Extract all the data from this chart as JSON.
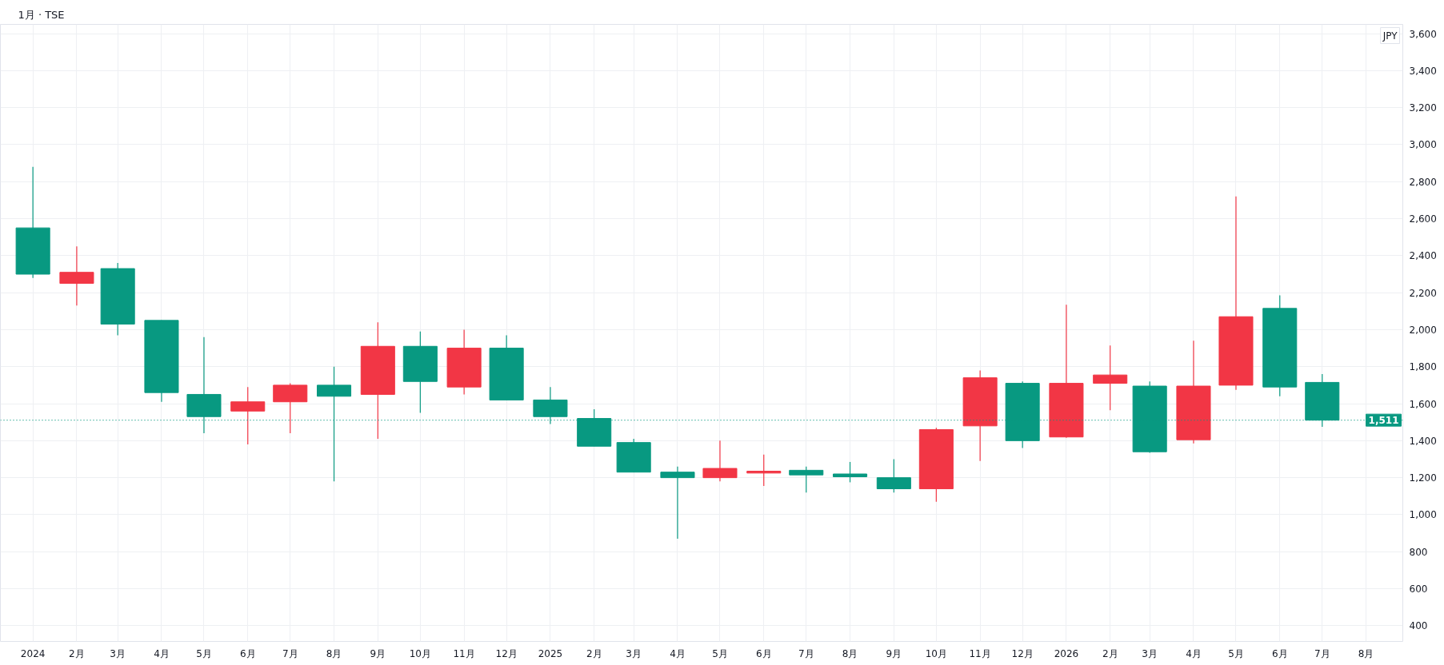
{
  "chart_data": {
    "type": "candlestick",
    "title": "1月 · TSE",
    "annotations": [
      "JPY"
    ],
    "x": [
      "2024-01",
      "2024-02",
      "2024-03",
      "2024-04",
      "2024-05",
      "2024-06",
      "2024-07",
      "2024-08",
      "2024-09",
      "2024-10",
      "2024-11",
      "2024-12",
      "2025-01",
      "2025-02",
      "2025-03",
      "2025-04",
      "2025-05",
      "2025-06",
      "2025-07",
      "2025-08",
      "2025-09",
      "2025-10",
      "2025-11",
      "2025-12",
      "2026-01",
      "2026-02",
      "2026-03",
      "2026-04",
      "2026-05",
      "2026-06",
      "2026-07"
    ],
    "ohlc": [
      [
        2550,
        2880,
        2280,
        2300
      ],
      [
        2250,
        2450,
        2130,
        2310
      ],
      [
        2330,
        2360,
        1970,
        2030
      ],
      [
        2050,
        2050,
        1610,
        1660
      ],
      [
        1650,
        1960,
        1440,
        1530
      ],
      [
        1560,
        1690,
        1380,
        1610
      ],
      [
        1610,
        1710,
        1440,
        1700
      ],
      [
        1700,
        1800,
        1180,
        1640
      ],
      [
        1650,
        2040,
        1410,
        1910
      ],
      [
        1910,
        1990,
        1550,
        1720
      ],
      [
        1690,
        2000,
        1650,
        1900
      ],
      [
        1900,
        1970,
        1620,
        1620
      ],
      [
        1620,
        1690,
        1490,
        1530
      ],
      [
        1520,
        1570,
        1370,
        1370
      ],
      [
        1390,
        1410,
        1230,
        1230
      ],
      [
        1230,
        1260,
        870,
        1200
      ],
      [
        1200,
        1400,
        1180,
        1250
      ],
      [
        1225,
        1325,
        1155,
        1235
      ],
      [
        1240,
        1260,
        1120,
        1215
      ],
      [
        1220,
        1285,
        1175,
        1205
      ],
      [
        1200,
        1300,
        1120,
        1140
      ],
      [
        1140,
        1470,
        1070,
        1460
      ],
      [
        1480,
        1780,
        1290,
        1740
      ],
      [
        1710,
        1720,
        1360,
        1400
      ],
      [
        1420,
        2135,
        1415,
        1710
      ],
      [
        1710,
        1915,
        1565,
        1755
      ],
      [
        1695,
        1720,
        1335,
        1340
      ],
      [
        1405,
        1940,
        1385,
        1695
      ],
      [
        1700,
        2720,
        1675,
        2070
      ],
      [
        2115,
        2185,
        1640,
        1690
      ],
      [
        1715,
        1760,
        1475,
        1511
      ]
    ],
    "colors": [
      "#089981",
      "#f23645",
      "#089981",
      "#089981",
      "#089981",
      "#f23645",
      "#f23645",
      "#089981",
      "#f23645",
      "#089981",
      "#f23645",
      "#089981",
      "#089981",
      "#089981",
      "#089981",
      "#089981",
      "#f23645",
      "#f23645",
      "#089981",
      "#089981",
      "#089981",
      "#f23645",
      "#f23645",
      "#089981",
      "#f23645",
      "#f23645",
      "#089981",
      "#f23645",
      "#f23645",
      "#089981",
      "#089981"
    ],
    "xlim": [
      "2023-12-09",
      "2026-08-27"
    ],
    "xticks": [
      {
        "value": "2024-01",
        "label": "2024"
      },
      {
        "value": "2024-02",
        "label": "2月"
      },
      {
        "value": "2024-03",
        "label": "3月"
      },
      {
        "value": "2024-04",
        "label": "4月"
      },
      {
        "value": "2024-05",
        "label": "5月"
      },
      {
        "value": "2024-06",
        "label": "6月"
      },
      {
        "value": "2024-07",
        "label": "7月"
      },
      {
        "value": "2024-08",
        "label": "8月"
      },
      {
        "value": "2024-09",
        "label": "9月"
      },
      {
        "value": "2024-10",
        "label": "10月"
      },
      {
        "value": "2024-11",
        "label": "11月"
      },
      {
        "value": "2024-12",
        "label": "12月"
      },
      {
        "value": "2025-01",
        "label": "2025"
      },
      {
        "value": "2025-02",
        "label": "2月"
      },
      {
        "value": "2025-03",
        "label": "3月"
      },
      {
        "value": "2025-04",
        "label": "4月"
      },
      {
        "value": "2025-05",
        "label": "5月"
      },
      {
        "value": "2025-06",
        "label": "6月"
      },
      {
        "value": "2025-07",
        "label": "7月"
      },
      {
        "value": "2025-08",
        "label": "8月"
      },
      {
        "value": "2025-09",
        "label": "9月"
      },
      {
        "value": "2025-10",
        "label": "10月"
      },
      {
        "value": "2025-11",
        "label": "11月"
      },
      {
        "value": "2025-12",
        "label": "12月"
      },
      {
        "value": "2026-01",
        "label": "2026"
      },
      {
        "value": "2026-02",
        "label": "2月"
      },
      {
        "value": "2026-03",
        "label": "3月"
      },
      {
        "value": "2026-04",
        "label": "4月"
      },
      {
        "value": "2026-05",
        "label": "5月"
      },
      {
        "value": "2026-06",
        "label": "6月"
      },
      {
        "value": "2026-07",
        "label": "7月"
      },
      {
        "value": "2026-08",
        "label": "8月"
      }
    ],
    "ylim": [
      315,
      3650
    ],
    "yticks": [
      400,
      600,
      800,
      {
        "value": 1000,
        "label": "1,000"
      },
      {
        "value": 1200,
        "label": "1,200"
      },
      {
        "value": 1400,
        "label": "1,400"
      },
      {
        "value": 1600,
        "label": "1,600"
      },
      {
        "value": 1800,
        "label": "1,800"
      },
      {
        "value": 2000,
        "label": "2,000"
      },
      {
        "value": 2200,
        "label": "2,200"
      },
      {
        "value": 2400,
        "label": "2,400"
      },
      {
        "value": 2600,
        "label": "2,600"
      },
      {
        "value": 2800,
        "label": "2,800"
      },
      {
        "value": 3000,
        "label": "3,000"
      },
      {
        "value": 3200,
        "label": "3,200"
      },
      {
        "value": 3400,
        "label": "3,400"
      },
      {
        "value": 3600,
        "label": "3,600"
      }
    ],
    "ref_lines": [
      {
        "axis": "y",
        "value": 1511,
        "label": "1,511",
        "color": "#089981",
        "line_style": "dotted"
      }
    ],
    "grid": true
  }
}
